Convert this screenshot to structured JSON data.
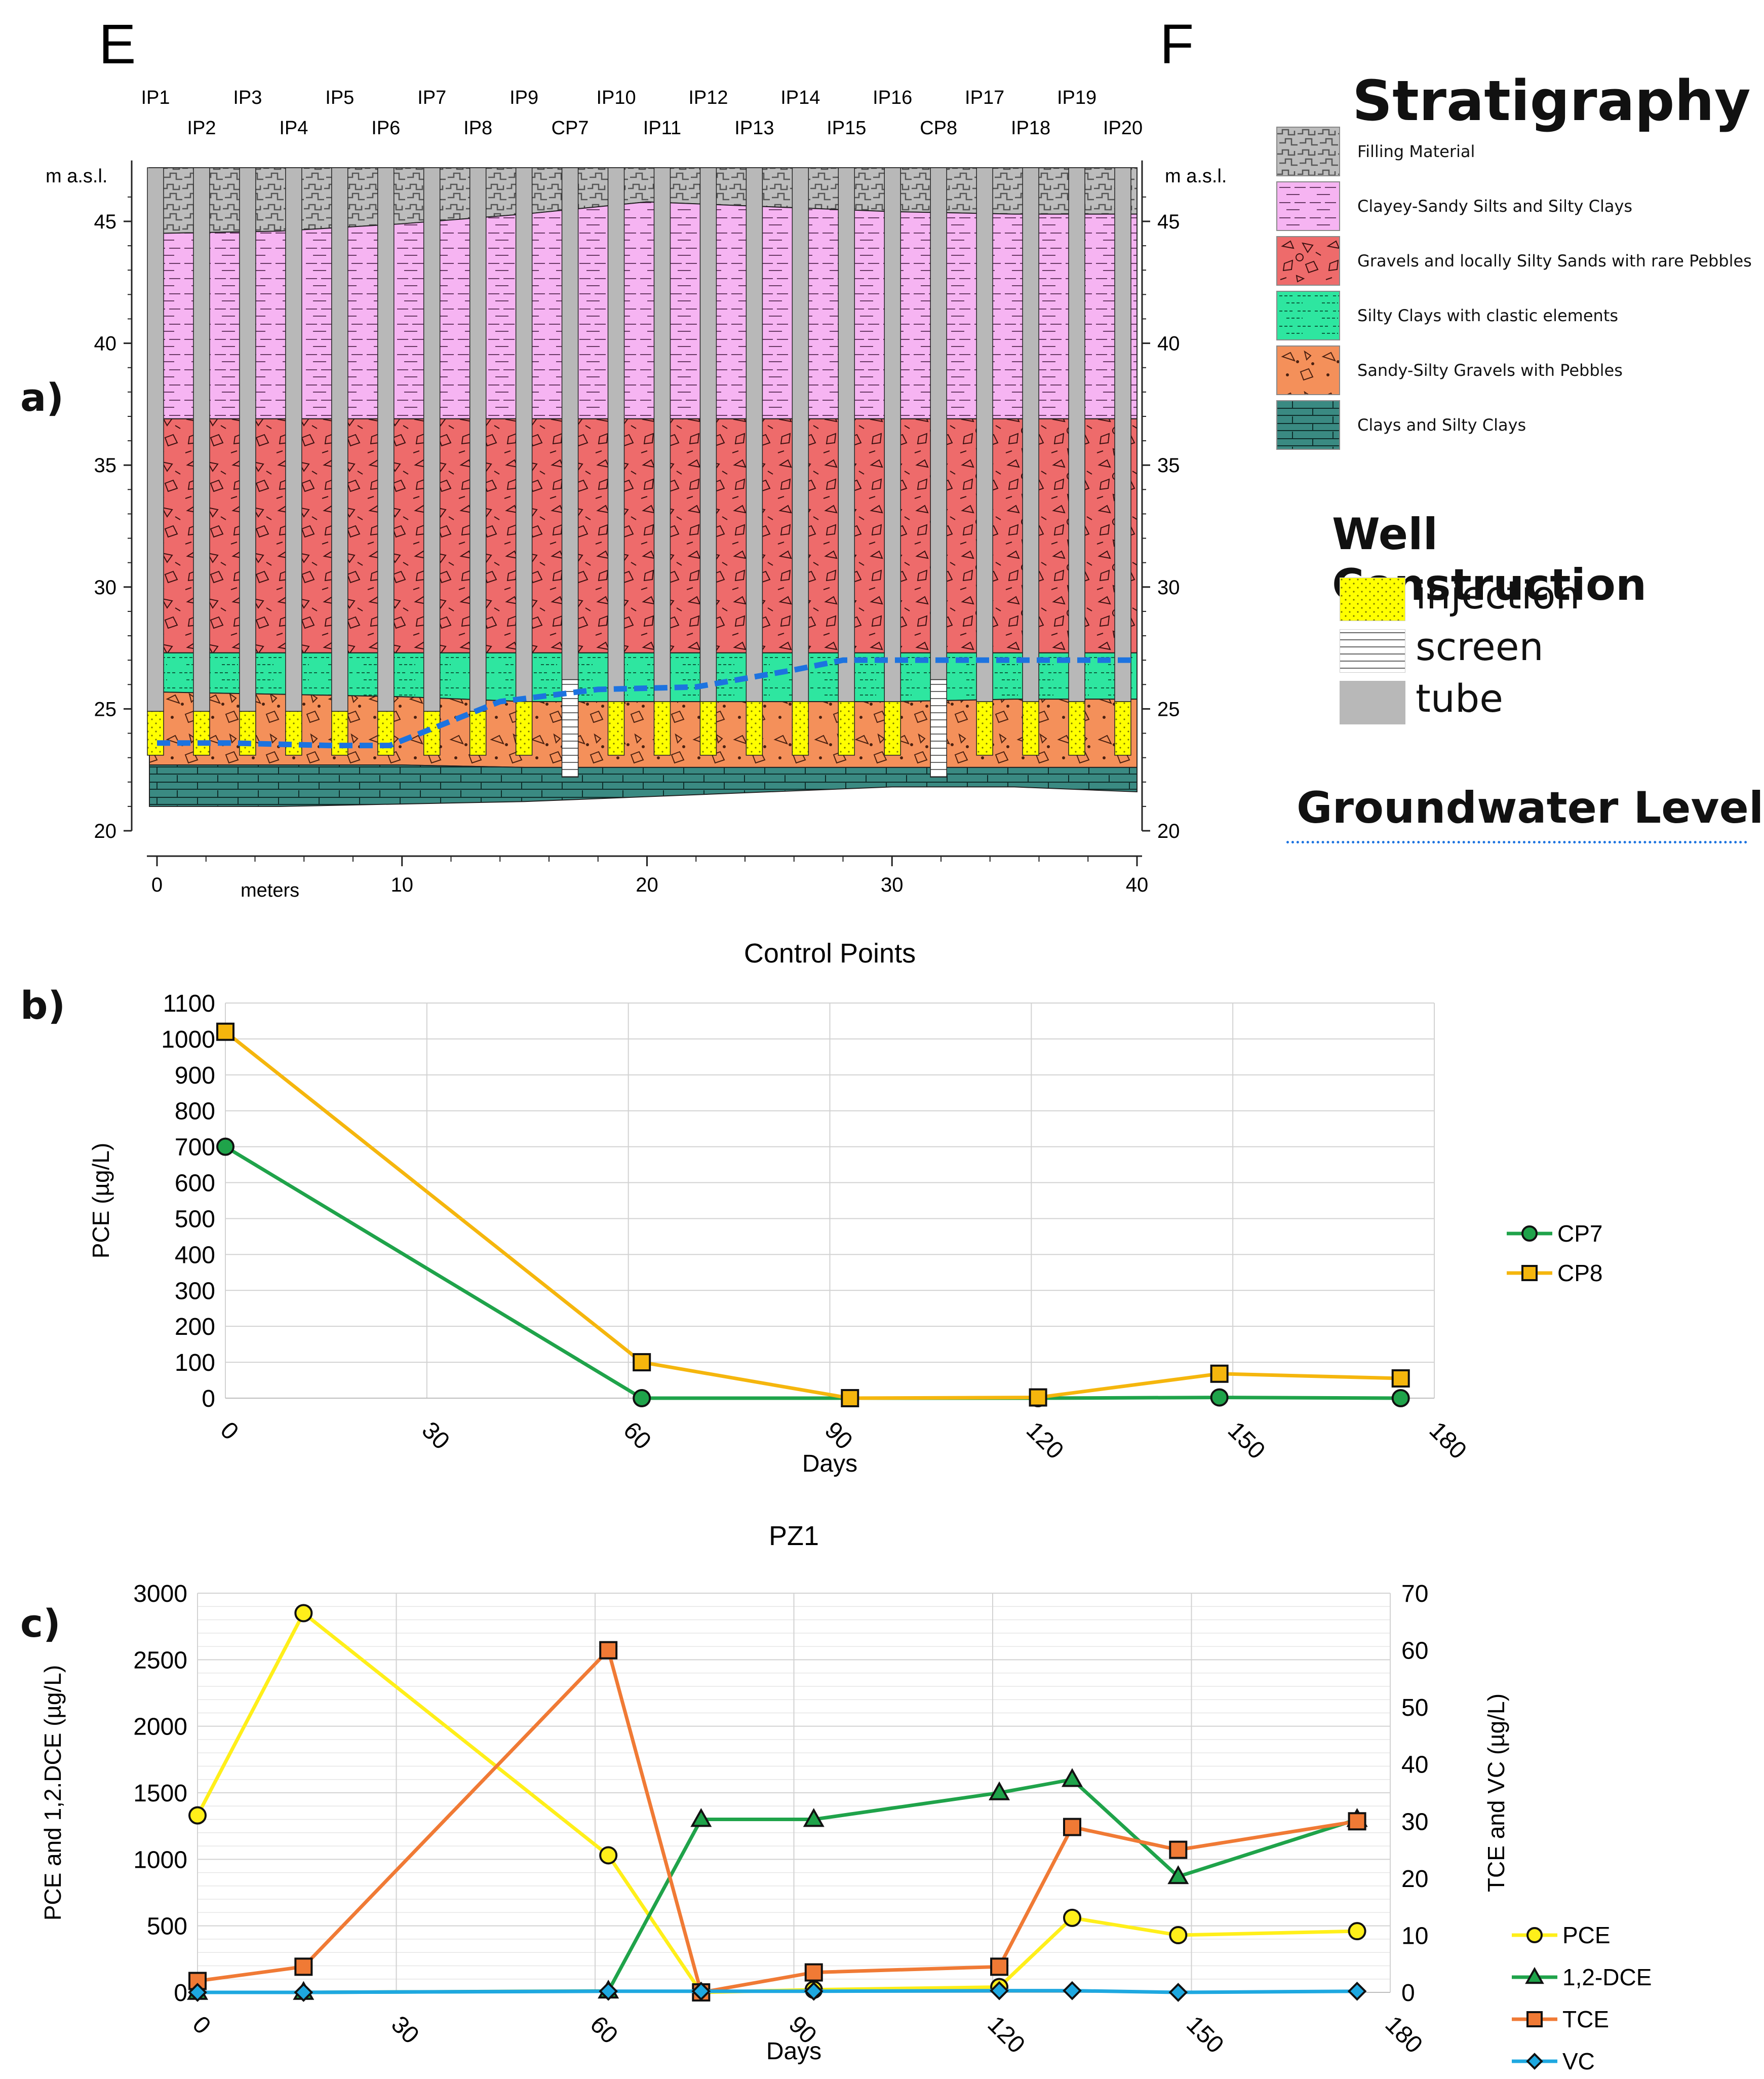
{
  "panel_labels": {
    "a": "a)",
    "b": "b)",
    "c": "c)"
  },
  "section": {
    "left_label": "E",
    "right_label": "F",
    "yaxis_unit": "m a.s.l.",
    "xlabel": "meters",
    "y_ticks": [
      20,
      25,
      30,
      35,
      40,
      45
    ],
    "x_ticks": [
      0,
      10,
      20,
      30,
      40
    ],
    "well_labels_top": [
      "IP1",
      "IP3",
      "IP5",
      "IP7",
      "IP9",
      "IP10",
      "IP12",
      "IP14",
      "IP16",
      "IP17",
      "IP19"
    ],
    "well_labels_bottom": [
      "IP2",
      "IP4",
      "IP6",
      "IP8",
      "CP7",
      "IP11",
      "IP13",
      "IP15",
      "CP8",
      "IP18",
      "IP20"
    ]
  },
  "legend": {
    "stratigraphy_title": "Stratigraphy",
    "strata": [
      {
        "label": "Filling Material",
        "color": "#bdbdbd"
      },
      {
        "label": "Clayey-Sandy Silts and Silty Clays",
        "color": "#f6b4f2"
      },
      {
        "label": "Gravels and locally Silty Sands with rare Pebbles",
        "color": "#ee6b6b"
      },
      {
        "label": "Silty Clays with clastic elements",
        "color": "#2ee6a0"
      },
      {
        "label": "Sandy-Silty Gravels with Pebbles",
        "color": "#f4905a"
      },
      {
        "label": "Clays and Silty Clays",
        "color": "#3a8a82"
      }
    ],
    "well_title": "Well Construction",
    "well_items": [
      {
        "label": "injection",
        "color": "#ffff00"
      },
      {
        "label": "screen",
        "color": "#ffffff"
      },
      {
        "label": "tube",
        "color": "#b8b8b8"
      }
    ],
    "groundwater_title": "Groundwater Level"
  },
  "chart_data": [
    {
      "type": "line",
      "title": "Control Points",
      "xlabel": "Days",
      "ylabel": "PCE (µg/L)",
      "xlim": [
        0,
        180
      ],
      "ylim": [
        0,
        1100
      ],
      "x_ticks": [
        0,
        30,
        60,
        90,
        120,
        150,
        180
      ],
      "y_ticks": [
        0,
        100,
        200,
        300,
        400,
        500,
        600,
        700,
        800,
        900,
        1000,
        1100
      ],
      "grid": true,
      "legend_position": "right",
      "series": [
        {
          "name": "CP7",
          "color": "#1fa34a",
          "marker": "circle",
          "x": [
            0,
            62,
            93,
            121,
            148,
            175
          ],
          "y": [
            700,
            0,
            0,
            0,
            2,
            0
          ]
        },
        {
          "name": "CP8",
          "color": "#f5b60d",
          "marker": "square",
          "x": [
            0,
            62,
            93,
            121,
            148,
            175
          ],
          "y": [
            1020,
            100,
            0,
            2,
            68,
            55
          ]
        }
      ]
    },
    {
      "type": "line",
      "title": "PZ1",
      "xlabel": "Days",
      "ylabel": "PCE and 1,2.DCE (µg/L)",
      "y2label": "TCE and VC (µg/L)",
      "xlim": [
        0,
        180
      ],
      "ylim": [
        0,
        3000
      ],
      "y2lim": [
        0,
        70
      ],
      "x_ticks": [
        0,
        30,
        60,
        90,
        120,
        150,
        180
      ],
      "y_ticks": [
        0,
        500,
        1000,
        1500,
        2000,
        2500,
        3000
      ],
      "y2_ticks": [
        0,
        10,
        20,
        30,
        40,
        50,
        60,
        70
      ],
      "grid": true,
      "legend_position": "bottom-right",
      "series": [
        {
          "name": "PCE",
          "axis": "left",
          "color": "#ffef1a",
          "marker": "circle",
          "x": [
            0,
            16,
            62,
            76,
            93,
            121,
            132,
            148,
            175
          ],
          "y": [
            1330,
            2850,
            1030,
            0,
            20,
            40,
            560,
            430,
            460
          ]
        },
        {
          "name": "1,2-DCE",
          "axis": "left",
          "color": "#1fa34a",
          "marker": "triangle",
          "x": [
            0,
            16,
            62,
            76,
            93,
            121,
            132,
            148,
            175
          ],
          "y": [
            0,
            0,
            10,
            1300,
            1300,
            1500,
            1600,
            870,
            1300
          ]
        },
        {
          "name": "TCE",
          "axis": "right",
          "color": "#f07a35",
          "marker": "square",
          "x": [
            0,
            16,
            62,
            76,
            93,
            121,
            132,
            148,
            175
          ],
          "y": [
            2,
            4.5,
            60,
            0,
            3.5,
            4.5,
            29,
            25,
            30
          ]
        },
        {
          "name": "VC",
          "axis": "right",
          "color": "#1ea8e0",
          "marker": "diamond",
          "x": [
            0,
            16,
            62,
            76,
            93,
            121,
            132,
            148,
            175
          ],
          "y": [
            0,
            0,
            0.2,
            0.2,
            0.2,
            0.3,
            0.3,
            0,
            0.2
          ]
        }
      ]
    }
  ]
}
